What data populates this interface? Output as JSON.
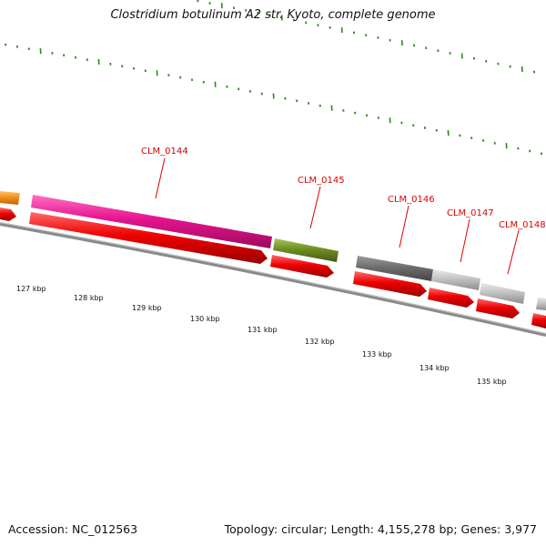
{
  "title": "Clostridium botulinum A2 str. Kyoto, complete genome",
  "footer": {
    "accession": "Accession: NC_012563",
    "summary": "Topology: circular; Length: 4,155,278 bp; Genes: 3,977"
  },
  "gene_labels": [
    "CLM_0144",
    "CLM_0145",
    "CLM_0146",
    "CLM_0147",
    "CLM_0148"
  ],
  "kbp_labels": [
    "127 kbp",
    "128 kbp",
    "129 kbp",
    "130 kbp",
    "131 kbp",
    "132 kbp",
    "133 kbp",
    "134 kbp",
    "135 kbp"
  ],
  "colors": {
    "label_red": "#dd0000",
    "tick_green": "#2a8a1a",
    "cds_red": "#ee0000",
    "magenta": "#e6138f",
    "olive": "#6f8f22",
    "dark_gray": "#6e6e6e",
    "light_gray": "#c3c3c3",
    "orange": "#f5911e",
    "backbone": "#8a8a8a"
  }
}
